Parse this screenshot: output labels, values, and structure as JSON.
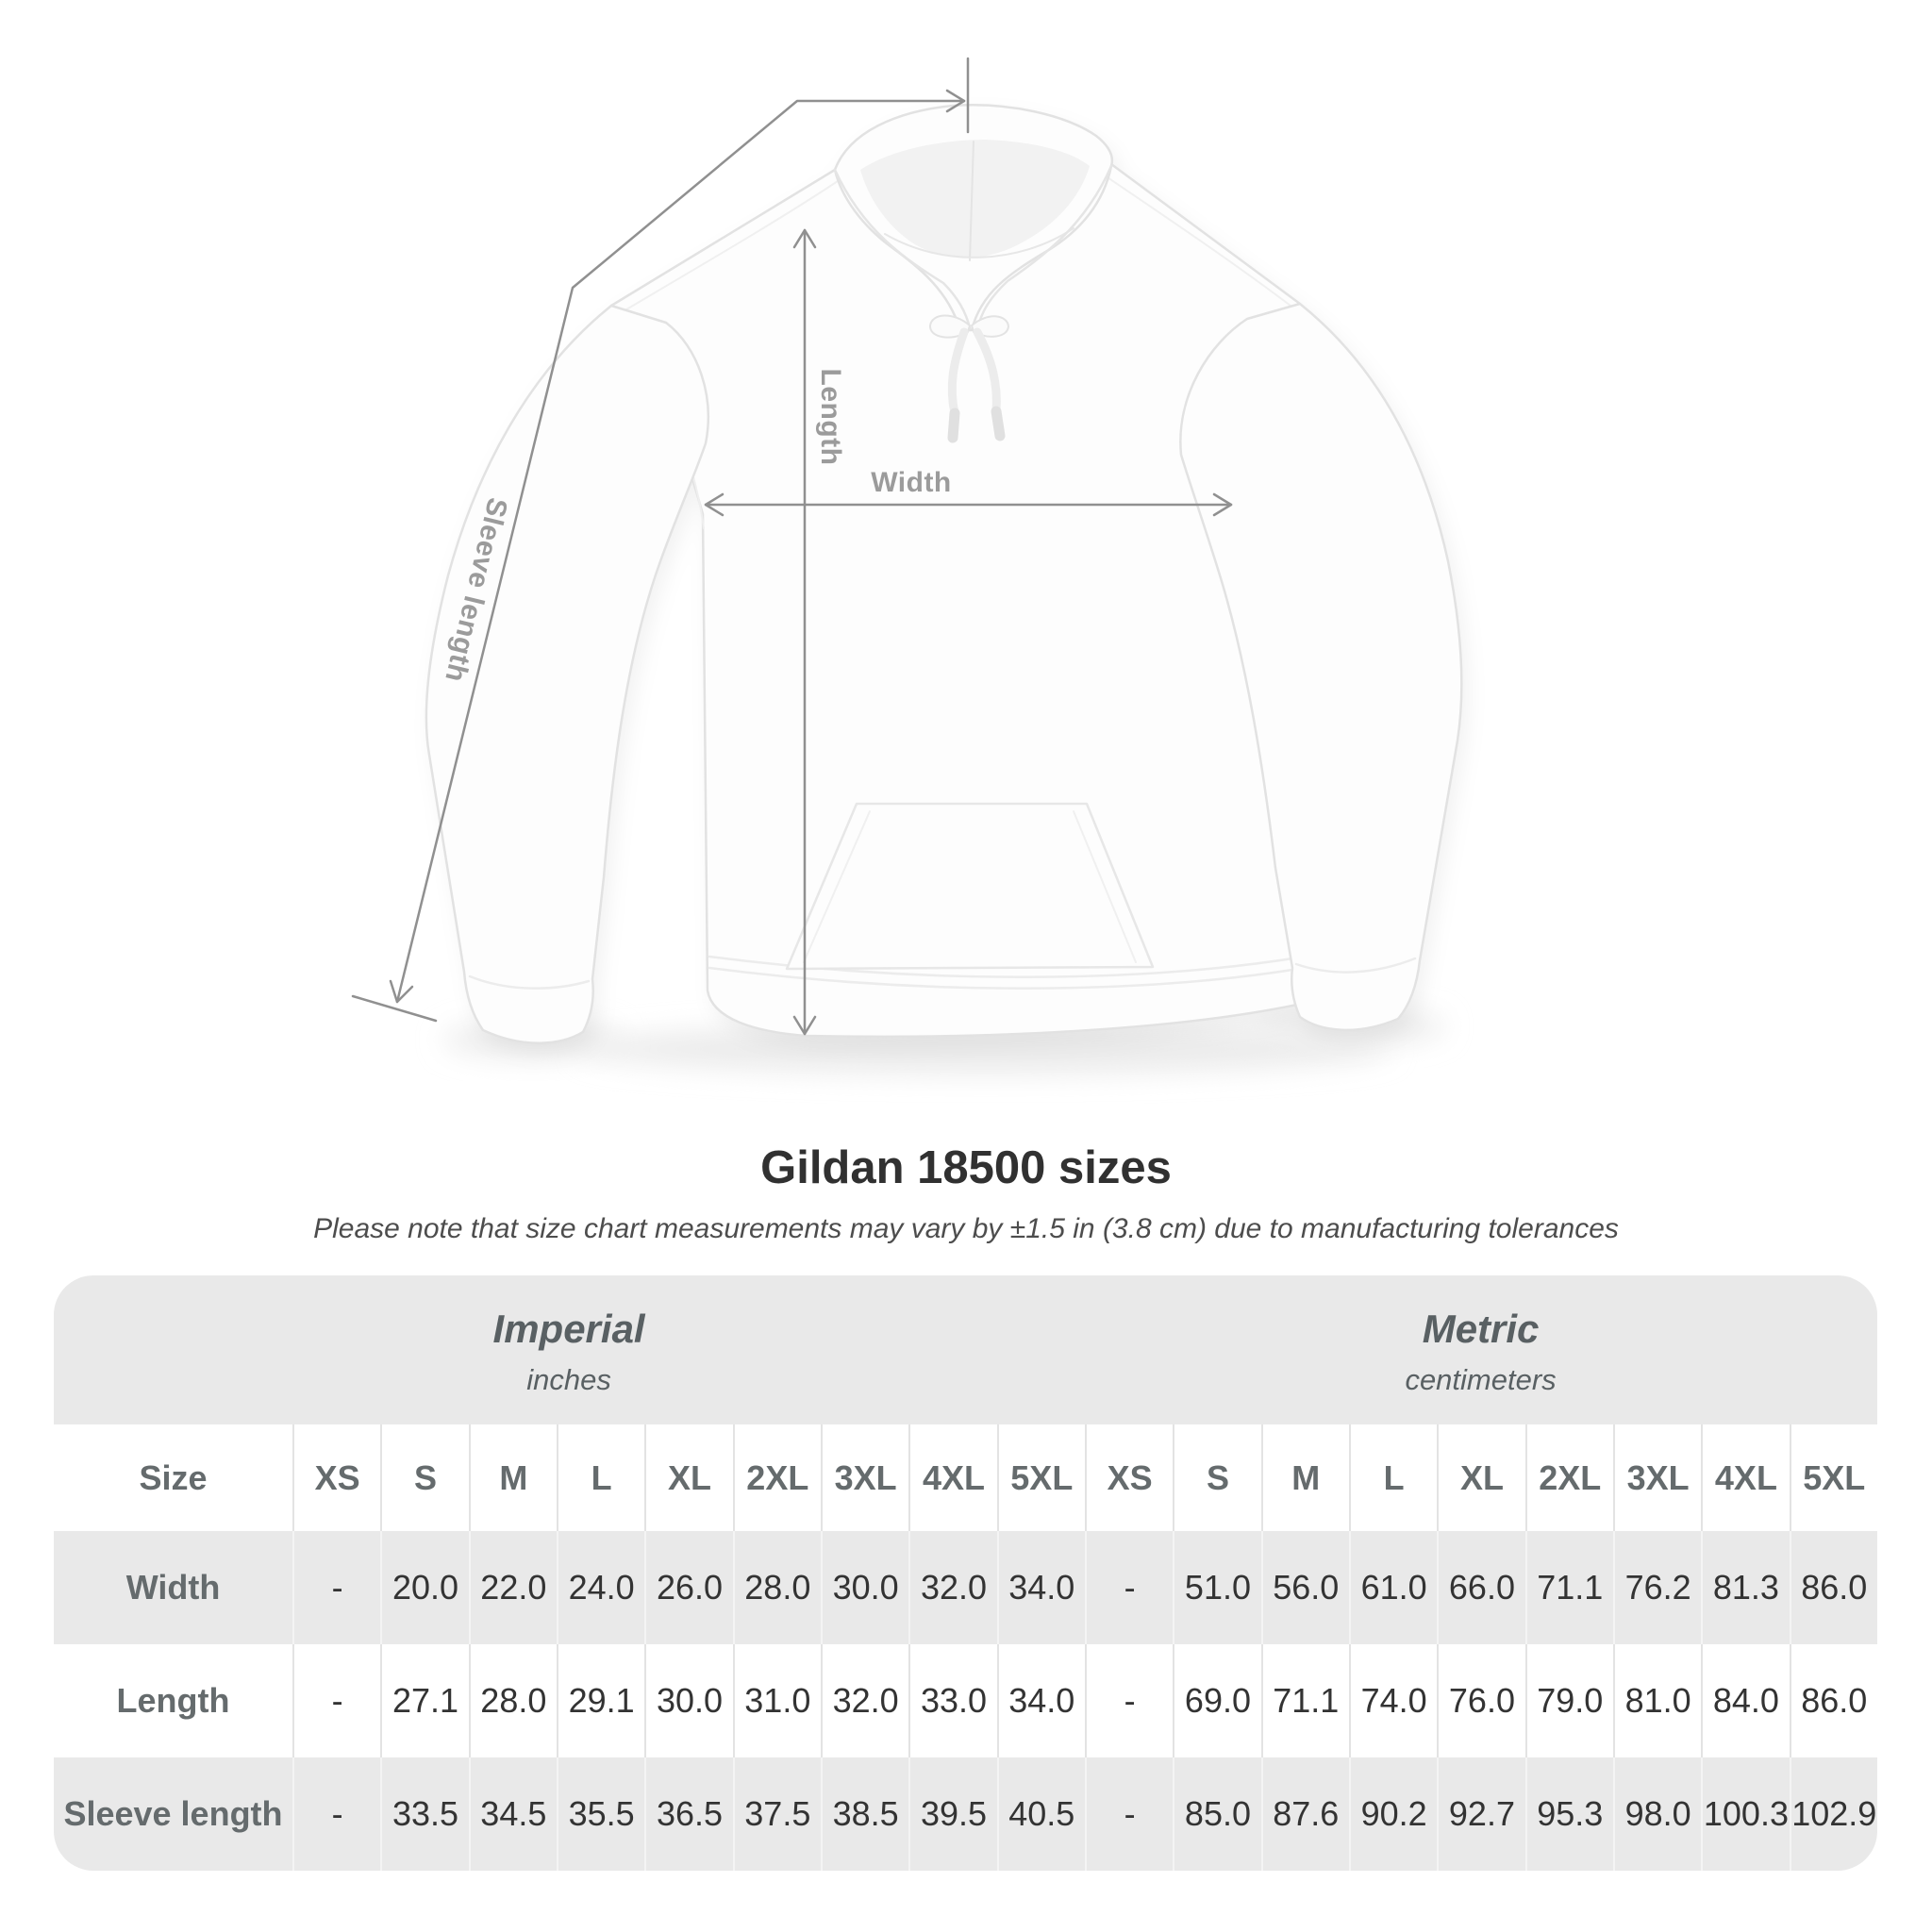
{
  "diagram": {
    "labels": {
      "length": "Length",
      "width": "Width",
      "sleeve_length": "Sleeve length"
    }
  },
  "header": {
    "title": "Gildan 18500 sizes",
    "subtitle": "Please note that size chart measurements may vary by ±1.5 in (3.8 cm) due to manufacturing tolerances"
  },
  "size_table": {
    "size_column_label": "Size",
    "unit_groups": [
      {
        "name": "Imperial",
        "unit": "inches"
      },
      {
        "name": "Metric",
        "unit": "centimeters"
      }
    ],
    "sizes": [
      "XS",
      "S",
      "M",
      "L",
      "XL",
      "2XL",
      "3XL",
      "4XL",
      "5XL"
    ],
    "rows": [
      {
        "label": "Width",
        "imperial": [
          "-",
          "20.0",
          "22.0",
          "24.0",
          "26.0",
          "28.0",
          "30.0",
          "32.0",
          "34.0"
        ],
        "metric": [
          "-",
          "51.0",
          "56.0",
          "61.0",
          "66.0",
          "71.1",
          "76.2",
          "81.3",
          "86.0"
        ]
      },
      {
        "label": "Length",
        "imperial": [
          "-",
          "27.1",
          "28.0",
          "29.1",
          "30.0",
          "31.0",
          "32.0",
          "33.0",
          "34.0"
        ],
        "metric": [
          "-",
          "69.0",
          "71.1",
          "74.0",
          "76.0",
          "79.0",
          "81.0",
          "84.0",
          "86.0"
        ]
      },
      {
        "label": "Sleeve length",
        "imperial": [
          "-",
          "33.5",
          "34.5",
          "35.5",
          "36.5",
          "37.5",
          "38.5",
          "39.5",
          "40.5"
        ],
        "metric": [
          "-",
          "85.0",
          "87.6",
          "90.2",
          "92.7",
          "95.3",
          "98.0",
          "100.3",
          "102.9"
        ]
      }
    ]
  },
  "colors": {
    "table_band_gray": "#e9e9e9",
    "annotation_line": "#909090",
    "annotation_label": "#9b9b9b",
    "title_text": "#313131",
    "table_heading_text": "#596063",
    "value_text": "#333333"
  }
}
